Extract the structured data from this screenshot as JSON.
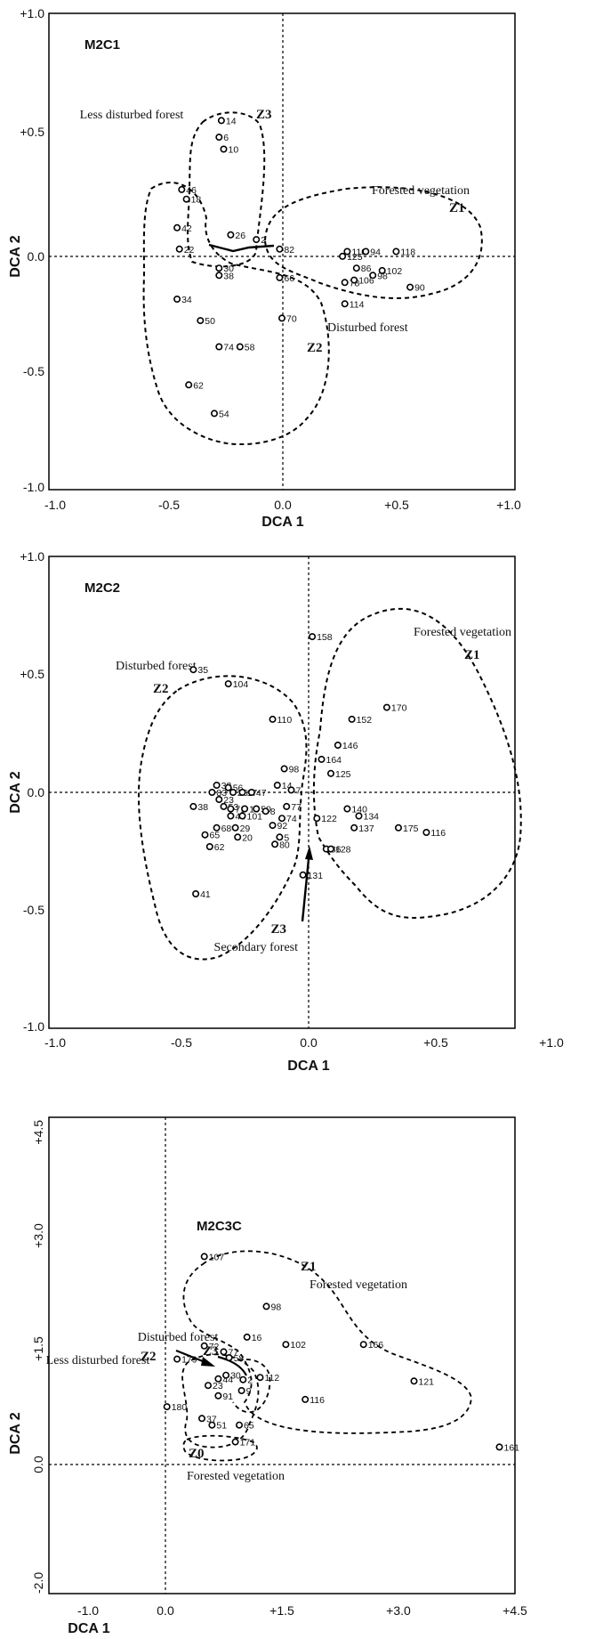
{
  "chart_data": [
    {
      "type": "scatter",
      "title": "M2C1",
      "xlabel": "DCA 1",
      "ylabel": "DCA 2",
      "xlim": [
        -1.0,
        1.0
      ],
      "ylim": [
        -1.0,
        1.0
      ],
      "x_ticks": [
        "-1.0",
        "-0.5",
        "0.0",
        "+0.5",
        "+1.0"
      ],
      "y_ticks": [
        "+1.0",
        "+0.5",
        "0.0",
        "-0.5",
        "-1.0"
      ],
      "points": [
        {
          "label": "14",
          "x": -0.26,
          "y": 0.55
        },
        {
          "label": "6",
          "x": -0.27,
          "y": 0.48
        },
        {
          "label": "10",
          "x": -0.25,
          "y": 0.43
        },
        {
          "label": "46",
          "x": -0.43,
          "y": 0.26
        },
        {
          "label": "18",
          "x": -0.41,
          "y": 0.22
        },
        {
          "label": "42",
          "x": -0.45,
          "y": 0.1
        },
        {
          "label": "22",
          "x": -0.44,
          "y": 0.01
        },
        {
          "label": "26",
          "x": -0.22,
          "y": 0.07
        },
        {
          "label": "2",
          "x": -0.11,
          "y": 0.05
        },
        {
          "label": "82",
          "x": -0.01,
          "y": 0.01
        },
        {
          "label": "30",
          "x": -0.27,
          "y": -0.07
        },
        {
          "label": "38",
          "x": -0.27,
          "y": -0.1
        },
        {
          "label": "66",
          "x": -0.01,
          "y": -0.11
        },
        {
          "label": "34",
          "x": -0.45,
          "y": -0.2
        },
        {
          "label": "50",
          "x": -0.35,
          "y": -0.29
        },
        {
          "label": "70",
          "x": 0.0,
          "y": -0.28
        },
        {
          "label": "74",
          "x": -0.27,
          "y": -0.4
        },
        {
          "label": "58",
          "x": -0.18,
          "y": -0.4
        },
        {
          "label": "62",
          "x": -0.4,
          "y": -0.56
        },
        {
          "label": "54",
          "x": -0.29,
          "y": -0.68
        },
        {
          "label": "110",
          "x": 0.28,
          "y": 0.0
        },
        {
          "label": "94",
          "x": 0.36,
          "y": 0.0
        },
        {
          "label": "118",
          "x": 0.49,
          "y": 0.0
        },
        {
          "label": "125",
          "x": 0.26,
          "y": -0.02
        },
        {
          "label": "86",
          "x": 0.32,
          "y": -0.07
        },
        {
          "label": "102",
          "x": 0.43,
          "y": -0.08
        },
        {
          "label": "78",
          "x": 0.27,
          "y": -0.13
        },
        {
          "label": "106",
          "x": 0.31,
          "y": -0.12
        },
        {
          "label": "98",
          "x": 0.39,
          "y": -0.1
        },
        {
          "label": "90",
          "x": 0.55,
          "y": -0.15
        },
        {
          "label": "114",
          "x": 0.27,
          "y": -0.22
        }
      ],
      "annotations": [
        "Less disturbed forest",
        "Z3",
        "Forested vegetation",
        "Z1",
        "Disturbed forest",
        "Z2"
      ]
    },
    {
      "type": "scatter",
      "title": "M2C2",
      "xlabel": "DCA 1",
      "ylabel": "DCA 2",
      "xlim": [
        -1.0,
        1.0
      ],
      "ylim": [
        -1.0,
        1.0
      ],
      "x_ticks": [
        "-1.0",
        "-0.5",
        "0.0",
        "+0.5",
        "+1.0"
      ],
      "y_ticks": [
        "+1.0",
        "+0.5",
        "0.0",
        "-0.5",
        "-1.0"
      ],
      "points": [
        {
          "label": "158",
          "x": 0.13,
          "y": 0.66
        },
        {
          "label": "35",
          "x": -0.38,
          "y": 0.52
        },
        {
          "label": "104",
          "x": -0.23,
          "y": 0.46
        },
        {
          "label": "170",
          "x": 0.45,
          "y": 0.36
        },
        {
          "label": "110",
          "x": -0.04,
          "y": 0.31
        },
        {
          "label": "152",
          "x": 0.3,
          "y": 0.31
        },
        {
          "label": "146",
          "x": 0.24,
          "y": 0.2
        },
        {
          "label": "164",
          "x": 0.17,
          "y": 0.14
        },
        {
          "label": "98",
          "x": 0.01,
          "y": 0.1
        },
        {
          "label": "125",
          "x": 0.21,
          "y": 0.08
        },
        {
          "label": "14",
          "x": -0.02,
          "y": 0.03
        },
        {
          "label": "7",
          "x": 0.04,
          "y": 0.01
        },
        {
          "label": "32",
          "x": -0.28,
          "y": 0.03
        },
        {
          "label": "83",
          "x": -0.3,
          "y": 0.0
        },
        {
          "label": "56",
          "x": -0.23,
          "y": 0.02
        },
        {
          "label": "26",
          "x": -0.21,
          "y": 0.0
        },
        {
          "label": "17",
          "x": -0.17,
          "y": 0.0
        },
        {
          "label": "47",
          "x": -0.13,
          "y": 0.0
        },
        {
          "label": "23",
          "x": -0.27,
          "y": -0.03
        },
        {
          "label": "53",
          "x": -0.25,
          "y": -0.06
        },
        {
          "label": "71",
          "x": -0.22,
          "y": -0.07
        },
        {
          "label": "15",
          "x": -0.16,
          "y": -0.07
        },
        {
          "label": "50",
          "x": -0.11,
          "y": -0.07
        },
        {
          "label": "8",
          "x": -0.07,
          "y": -0.08
        },
        {
          "label": "77",
          "x": 0.02,
          "y": -0.06
        },
        {
          "label": "38",
          "x": -0.38,
          "y": -0.06
        },
        {
          "label": "44",
          "x": -0.22,
          "y": -0.1
        },
        {
          "label": "101",
          "x": -0.17,
          "y": -0.1
        },
        {
          "label": "74",
          "x": 0.0,
          "y": -0.11
        },
        {
          "label": "140",
          "x": 0.28,
          "y": -0.07
        },
        {
          "label": "122",
          "x": 0.15,
          "y": -0.11
        },
        {
          "label": "134",
          "x": 0.33,
          "y": -0.1
        },
        {
          "label": "68",
          "x": -0.28,
          "y": -0.15
        },
        {
          "label": "29",
          "x": -0.2,
          "y": -0.15
        },
        {
          "label": "92",
          "x": -0.04,
          "y": -0.14
        },
        {
          "label": "137",
          "x": 0.31,
          "y": -0.15
        },
        {
          "label": "175",
          "x": 0.5,
          "y": -0.15
        },
        {
          "label": "116",
          "x": 0.62,
          "y": -0.17
        },
        {
          "label": "65",
          "x": -0.33,
          "y": -0.18
        },
        {
          "label": "20",
          "x": -0.19,
          "y": -0.19
        },
        {
          "label": "5",
          "x": -0.01,
          "y": -0.19
        },
        {
          "label": "80",
          "x": -0.03,
          "y": -0.22
        },
        {
          "label": "62",
          "x": -0.31,
          "y": -0.23
        },
        {
          "label": "86",
          "x": 0.19,
          "y": -0.24
        },
        {
          "label": "128",
          "x": 0.21,
          "y": -0.24
        },
        {
          "label": "131",
          "x": 0.09,
          "y": -0.35
        },
        {
          "label": "41",
          "x": -0.37,
          "y": -0.43
        }
      ],
      "annotations": [
        "Disturbed forest",
        "Z2",
        "Forested vegetation",
        "Z1",
        "Z3",
        "Secondary forest"
      ]
    },
    {
      "type": "scatter",
      "title": "M2C3C",
      "xlabel": "DCA 1",
      "ylabel": "DCA 2",
      "xlim": [
        -1.5,
        4.5
      ],
      "ylim": [
        -2.0,
        4.5
      ],
      "x_ticks": [
        "-1.0",
        "0.0",
        "+1.5",
        "+3.0",
        "+4.5"
      ],
      "y_ticks": [
        "+4.5",
        "+3.0",
        "+1.5",
        "0.0",
        "-2.0"
      ],
      "points": [
        {
          "label": "107",
          "x": 0.5,
          "y": 2.6
        },
        {
          "label": "98",
          "x": 1.3,
          "y": 1.92
        },
        {
          "label": "102",
          "x": 1.55,
          "y": 1.4
        },
        {
          "label": "166",
          "x": 2.55,
          "y": 1.4
        },
        {
          "label": "121",
          "x": 3.2,
          "y": 0.9
        },
        {
          "label": "72",
          "x": 0.5,
          "y": 1.38
        },
        {
          "label": "77",
          "x": 0.75,
          "y": 1.3
        },
        {
          "label": "58",
          "x": 0.82,
          "y": 1.22
        },
        {
          "label": "16",
          "x": 1.05,
          "y": 1.5
        },
        {
          "label": "179",
          "x": 0.15,
          "y": 1.2
        },
        {
          "label": "44",
          "x": 0.68,
          "y": 0.93
        },
        {
          "label": "30",
          "x": 0.78,
          "y": 0.98
        },
        {
          "label": "2",
          "x": 1.0,
          "y": 0.92
        },
        {
          "label": "112",
          "x": 1.22,
          "y": 0.95
        },
        {
          "label": "23",
          "x": 0.55,
          "y": 0.84
        },
        {
          "label": "91",
          "x": 0.68,
          "y": 0.7
        },
        {
          "label": "9",
          "x": 0.98,
          "y": 0.77
        },
        {
          "label": "116",
          "x": 1.8,
          "y": 0.65
        },
        {
          "label": "180",
          "x": 0.02,
          "y": 0.55
        },
        {
          "label": "37",
          "x": 0.47,
          "y": 0.39
        },
        {
          "label": "51",
          "x": 0.6,
          "y": 0.3
        },
        {
          "label": "65",
          "x": 0.95,
          "y": 0.3
        },
        {
          "label": "171",
          "x": 0.9,
          "y": 0.07
        },
        {
          "label": "161",
          "x": 4.3,
          "y": 0.0
        }
      ],
      "annotations": [
        "Disturbed forest",
        "Z2",
        "Z3",
        "Less disturbed forest",
        "Z1",
        "Forested vegetation",
        "Z0",
        "Forested vegetation"
      ]
    }
  ]
}
